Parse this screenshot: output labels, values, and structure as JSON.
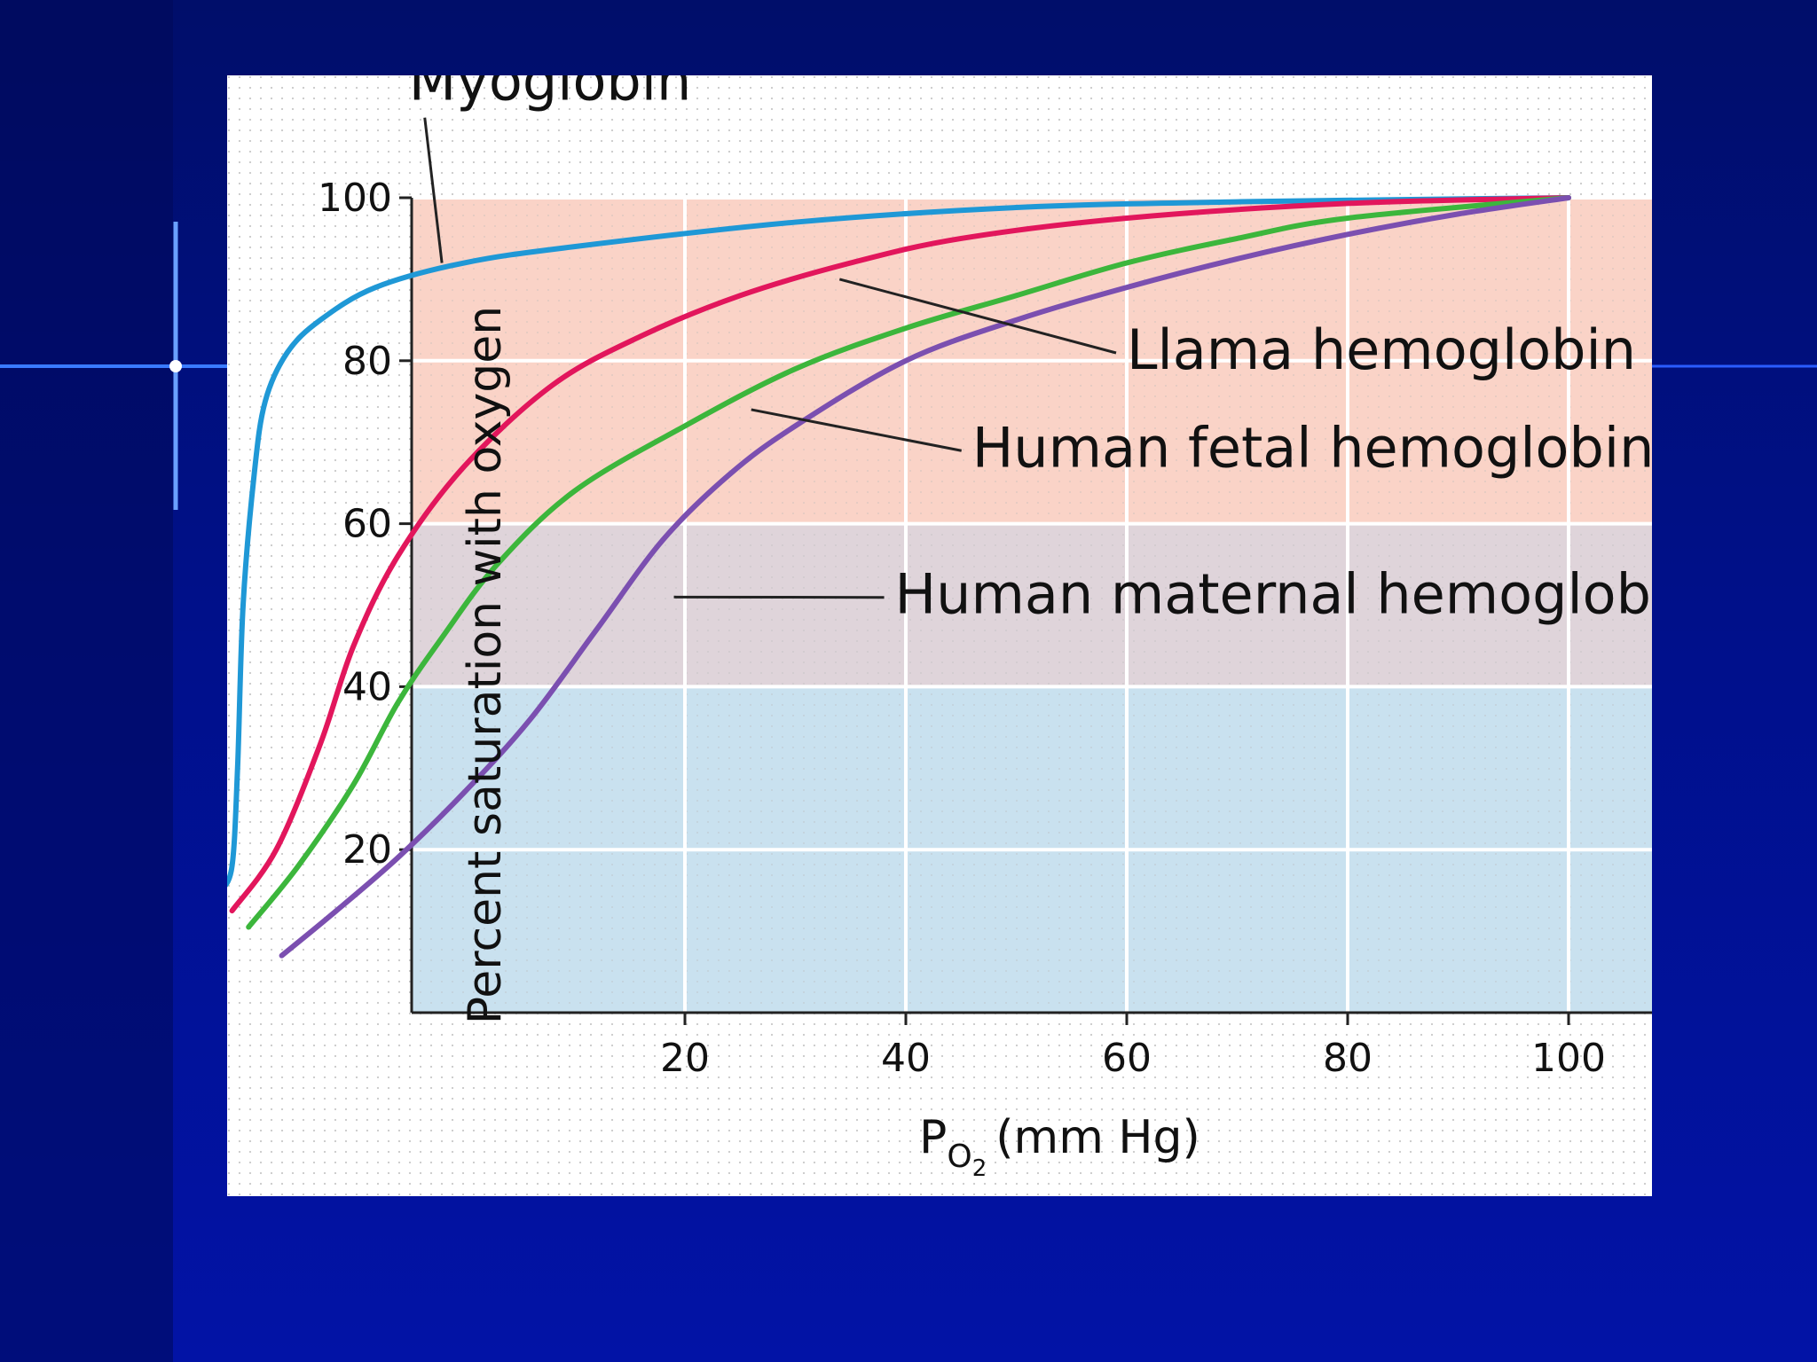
{
  "slide": {
    "background_colors": [
      "#000e6a",
      "#0213a6"
    ],
    "accent_line_color": "#3a7bff"
  },
  "chart_data": {
    "type": "line",
    "ylabel": "Percent saturation with oxygen",
    "xlabel": {
      "base": "P",
      "subscript": "O",
      "sub_subscript": "2",
      "unit": "(mm Hg)"
    },
    "xlim": [
      -25,
      105
    ],
    "ylim": [
      0,
      100
    ],
    "x_ticks": [
      20,
      40,
      60,
      80,
      100
    ],
    "y_ticks": [
      20,
      40,
      60,
      80,
      100
    ],
    "grid": true,
    "background_bands": [
      {
        "from": 60,
        "to": 100,
        "color": "#f9cbbd"
      },
      {
        "from": 40,
        "to": 60,
        "color": "#d9cdd3"
      },
      {
        "from": 0,
        "to": 40,
        "color": "#bfdcec"
      }
    ],
    "series": [
      {
        "name": "Myoglobin",
        "color": "#1f98d6",
        "points": [
          [
            -22,
            15
          ],
          [
            -21,
            18
          ],
          [
            -20.5,
            30
          ],
          [
            -20,
            50
          ],
          [
            -19,
            66
          ],
          [
            -18,
            75
          ],
          [
            -16,
            81
          ],
          [
            -13,
            85
          ],
          [
            -8,
            89
          ],
          [
            0,
            92
          ],
          [
            10,
            94
          ],
          [
            30,
            97
          ],
          [
            50,
            98.8
          ],
          [
            70,
            99.5
          ],
          [
            100,
            100
          ]
        ]
      },
      {
        "name": "Llama hemoglobin",
        "color": "#e2165c",
        "points": [
          [
            -21,
            12.5
          ],
          [
            -17,
            20
          ],
          [
            -13,
            33
          ],
          [
            -10,
            45
          ],
          [
            -6,
            56
          ],
          [
            0,
            67
          ],
          [
            8,
            77
          ],
          [
            16,
            83
          ],
          [
            25,
            88
          ],
          [
            35,
            92
          ],
          [
            45,
            95
          ],
          [
            60,
            97.5
          ],
          [
            80,
            99.3
          ],
          [
            100,
            100
          ]
        ]
      },
      {
        "name": "Human fetal hemoglobin",
        "color": "#3cb63c",
        "points": [
          [
            -19.5,
            10.5
          ],
          [
            -15,
            18
          ],
          [
            -10,
            28
          ],
          [
            -6,
            38
          ],
          [
            -2,
            46
          ],
          [
            3,
            55
          ],
          [
            10,
            64
          ],
          [
            20,
            72
          ],
          [
            30,
            79
          ],
          [
            40,
            84
          ],
          [
            50,
            88
          ],
          [
            60,
            92
          ],
          [
            70,
            95
          ],
          [
            80,
            97.5
          ],
          [
            100,
            100
          ]
        ]
      },
      {
        "name": "Human maternal hemoglobin",
        "color": "#7b4fb0",
        "points": [
          [
            -16.5,
            7
          ],
          [
            -12,
            12
          ],
          [
            -6,
            19
          ],
          [
            0,
            27
          ],
          [
            6,
            36
          ],
          [
            12,
            47
          ],
          [
            18,
            58
          ],
          [
            24,
            66
          ],
          [
            30,
            72
          ],
          [
            40,
            80
          ],
          [
            50,
            85
          ],
          [
            60,
            89
          ],
          [
            70,
            92.5
          ],
          [
            80,
            95.5
          ],
          [
            90,
            98
          ],
          [
            100,
            100
          ]
        ]
      }
    ],
    "annotations": [
      {
        "series": "Myoglobin",
        "text": "Myoglobin",
        "anchor": [
          -5,
          112
        ],
        "target": [
          -2,
          92
        ]
      },
      {
        "series": "Llama hemoglobin",
        "text": "Llama hemoglobin",
        "anchor": [
          60,
          79
        ],
        "target": [
          34,
          90
        ]
      },
      {
        "series": "Human fetal hemoglobin",
        "text": "Human fetal hemoglobin",
        "anchor": [
          46,
          67
        ],
        "target": [
          26,
          74
        ]
      },
      {
        "series": "Human maternal hemoglobin",
        "text": "Human maternal hemoglobin",
        "anchor": [
          39,
          49
        ],
        "target": [
          19,
          51
        ]
      }
    ]
  }
}
